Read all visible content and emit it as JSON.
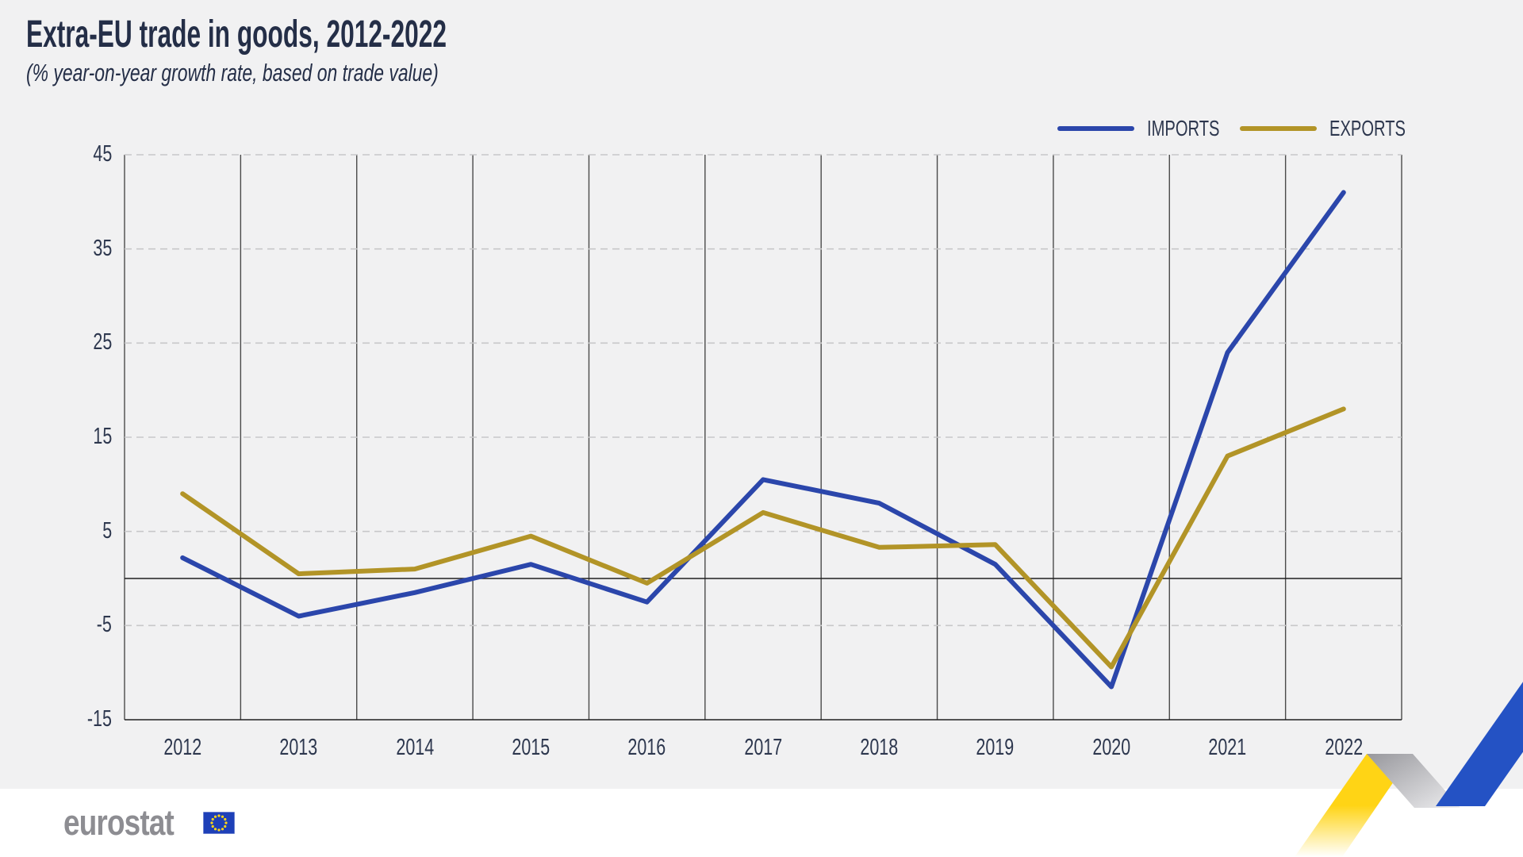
{
  "title": "Extra-EU trade in goods, 2012-2022",
  "subtitle": "(% year-on-year growth rate, based on trade value)",
  "legend": {
    "items": [
      {
        "label": "IMPORTS",
        "color": "#2b46ab"
      },
      {
        "label": "EXPORTS",
        "color": "#b29427"
      }
    ]
  },
  "footer": {
    "logo_text": "eurostat"
  },
  "colors": {
    "background": "#f1f1f2",
    "text": "#242e47",
    "axis_text": "#2d374e",
    "grid_vertical": "#4a4a4a",
    "grid_dashed": "#c8c8c9",
    "zero_line": "#1f1f1f",
    "imports_line": "#2b46ab",
    "exports_line": "#b29427",
    "deco_yellow": "#ffd415",
    "deco_blue": "#2452c4",
    "deco_gray": "#98989d",
    "flag_blue": "#1e40b8",
    "flag_stars": "#ffd617",
    "logo_gray": "#8d8d92"
  },
  "chart_data": {
    "type": "line",
    "x": [
      "2012",
      "2013",
      "2014",
      "2015",
      "2016",
      "2017",
      "2018",
      "2019",
      "2020",
      "2021",
      "2022"
    ],
    "series": [
      {
        "name": "IMPORTS",
        "color": "#2b46ab",
        "values": [
          2.2,
          -4,
          -1.5,
          1.5,
          -2.5,
          10.5,
          8,
          1.5,
          -11.5,
          24,
          41
        ]
      },
      {
        "name": "EXPORTS",
        "color": "#b29427",
        "values": [
          9,
          0.5,
          1,
          4.5,
          -0.5,
          7,
          3.3,
          3.6,
          -9.4,
          13,
          18
        ]
      }
    ],
    "title": "Extra-EU trade in goods, 2012-2022",
    "subtitle": "(% year-on-year growth rate, based on trade value)",
    "xlabel": "",
    "ylabel": "% year-on-year growth rate",
    "ylim": [
      -15,
      45
    ],
    "yticks": [
      45,
      35,
      25,
      15,
      5,
      -5,
      -15
    ],
    "grid": {
      "vertical_year_separators": true,
      "horizontal_dashed_at_ticks": true,
      "zero_line": true
    },
    "legend_position": "top-right"
  }
}
